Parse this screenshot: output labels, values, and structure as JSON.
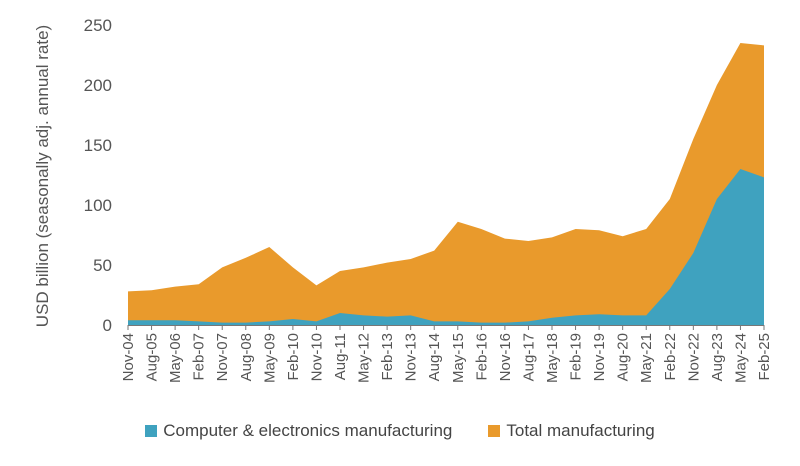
{
  "colors": {
    "total": "#E99A2C",
    "computer": "#3FA2BF",
    "axis_text": "#555555",
    "axis_line": "#777777"
  },
  "chart_data": {
    "type": "area",
    "title": "",
    "xlabel": "",
    "ylabel": "USD billion (seasonally adj. annual rate)",
    "ylim": [
      0,
      250
    ],
    "yticks": [
      0,
      50,
      100,
      150,
      200,
      250
    ],
    "xticks": [
      "Nov-04",
      "Aug-05",
      "May-06",
      "Feb-07",
      "Nov-07",
      "Aug-08",
      "May-09",
      "Feb-10",
      "Nov-10",
      "Aug-11",
      "May-12",
      "Feb-13",
      "Nov-13",
      "Aug-14",
      "May-15",
      "Feb-16",
      "Nov-16",
      "Aug-17",
      "May-18",
      "Feb-19",
      "Nov-19",
      "Aug-20",
      "May-21",
      "Feb-22",
      "Nov-22",
      "Aug-23",
      "May-24",
      "Feb-25"
    ],
    "grid": false,
    "legend_position": "bottom",
    "series": [
      {
        "name": "Total manufacturing",
        "color": "#E99A2C",
        "x": [
          "Nov-04",
          "Aug-05",
          "May-06",
          "Feb-07",
          "Nov-07",
          "Aug-08",
          "May-09",
          "Feb-10",
          "Nov-10",
          "Aug-11",
          "May-12",
          "Feb-13",
          "Nov-13",
          "Aug-14",
          "May-15",
          "Feb-16",
          "Nov-16",
          "Aug-17",
          "May-18",
          "Feb-19",
          "Nov-19",
          "Aug-20",
          "May-21",
          "Feb-22",
          "Nov-22",
          "Aug-23",
          "May-24",
          "Feb-25"
        ],
        "values": [
          28,
          29,
          32,
          34,
          48,
          56,
          65,
          48,
          33,
          45,
          48,
          52,
          55,
          62,
          86,
          80,
          72,
          70,
          73,
          80,
          79,
          74,
          80,
          105,
          155,
          200,
          235,
          233
        ]
      },
      {
        "name": "Computer & electronics manufacturing",
        "color": "#3FA2BF",
        "x": [
          "Nov-04",
          "Aug-05",
          "May-06",
          "Feb-07",
          "Nov-07",
          "Aug-08",
          "May-09",
          "Feb-10",
          "Nov-10",
          "Aug-11",
          "May-12",
          "Feb-13",
          "Nov-13",
          "Aug-14",
          "May-15",
          "Feb-16",
          "Nov-16",
          "Aug-17",
          "May-18",
          "Feb-19",
          "Nov-19",
          "Aug-20",
          "May-21",
          "Feb-22",
          "Nov-22",
          "Aug-23",
          "May-24",
          "Feb-25"
        ],
        "values": [
          4,
          4,
          4,
          3,
          2,
          2,
          3,
          5,
          3,
          10,
          8,
          7,
          8,
          3,
          3,
          2,
          2,
          3,
          6,
          8,
          9,
          8,
          8,
          30,
          60,
          105,
          130,
          123
        ]
      }
    ]
  }
}
